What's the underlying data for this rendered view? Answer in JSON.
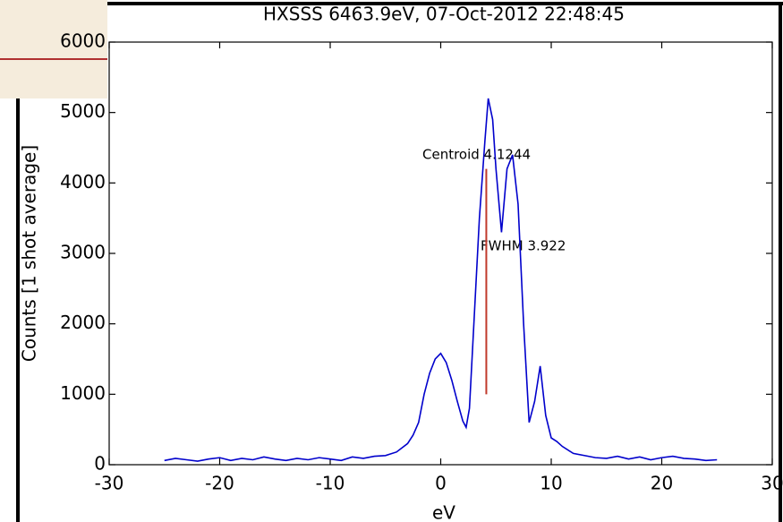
{
  "chart_data": {
    "type": "line",
    "title": "HXSSS 6463.9eV, 07-Oct-2012 22:48:45",
    "x_label": "eV",
    "y_label": "Counts [1 shot average]",
    "annotations": [
      "Centroid 4.1244",
      "FWHM 3.922"
    ],
    "centroid_line": {
      "x": 4.1244,
      "y": [
        1000,
        4200
      ],
      "color": "#c0392b"
    },
    "x": [
      -25,
      -24,
      -23,
      -22,
      -21,
      -20,
      -19,
      -18,
      -17,
      -16,
      -15,
      -14,
      -13,
      -12,
      -11,
      -10,
      -9,
      -8,
      -7,
      -6,
      -5,
      -4,
      -3,
      -2.5,
      -2,
      -1.5,
      -1,
      -0.5,
      0,
      0.5,
      1,
      1.5,
      2,
      2.3,
      2.6,
      3,
      3.5,
      4,
      4.3,
      4.7,
      5,
      5.5,
      6,
      6.5,
      7,
      7.5,
      8,
      8.5,
      9,
      9.5,
      10,
      10.5,
      11,
      12,
      13,
      14,
      15,
      16,
      17,
      18,
      19,
      20,
      21,
      22,
      23,
      24,
      25
    ],
    "series": [
      {
        "color": "#0000cc",
        "values": [
          60,
          90,
          70,
          50,
          80,
          100,
          60,
          90,
          70,
          110,
          80,
          60,
          90,
          70,
          100,
          80,
          60,
          110,
          90,
          120,
          130,
          180,
          300,
          420,
          600,
          1000,
          1300,
          1500,
          1580,
          1450,
          1200,
          900,
          620,
          530,
          800,
          2000,
          3500,
          4600,
          5200,
          4900,
          4200,
          3300,
          4200,
          4400,
          3700,
          2000,
          600,
          900,
          1400,
          700,
          380,
          330,
          260,
          160,
          130,
          100,
          90,
          120,
          80,
          110,
          70,
          100,
          120,
          90,
          80,
          60,
          70
        ]
      }
    ],
    "xlim": [
      -30,
      30
    ],
    "xticks": [
      -30,
      -20,
      -10,
      0,
      10,
      20,
      30
    ],
    "ylim": [
      0,
      6000
    ],
    "yticks": [
      0,
      1000,
      2000,
      3000,
      4000,
      5000,
      6000
    ]
  }
}
